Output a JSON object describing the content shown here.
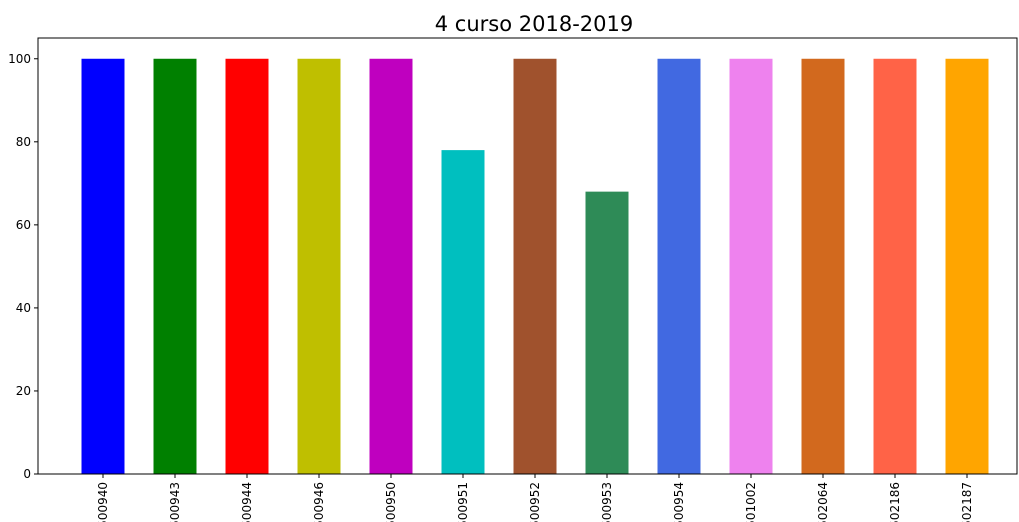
{
  "chart_data": {
    "type": "bar",
    "title": "4 curso 2018-2019",
    "xlabel": "",
    "ylabel": "",
    "categories": [
      "500940",
      "500943",
      "500944",
      "500946",
      "500950",
      "500951",
      "500952",
      "500953",
      "500954",
      "501002",
      "502064",
      "502186",
      "502187"
    ],
    "values": [
      100,
      100,
      100,
      100,
      100,
      78,
      100,
      68,
      100,
      100,
      100,
      100,
      100
    ],
    "colors": [
      "#0000ff",
      "#008000",
      "#ff0000",
      "#bfbf00",
      "#bf00bf",
      "#00bfbf",
      "#a0522d",
      "#2e8b57",
      "#4169e1",
      "#ee82ee",
      "#d2691e",
      "#ff6347",
      "#ffa500"
    ],
    "ylim": [
      0,
      105
    ],
    "yticks": [
      0,
      20,
      40,
      60,
      80,
      100
    ],
    "grid": false,
    "legend": "none"
  }
}
